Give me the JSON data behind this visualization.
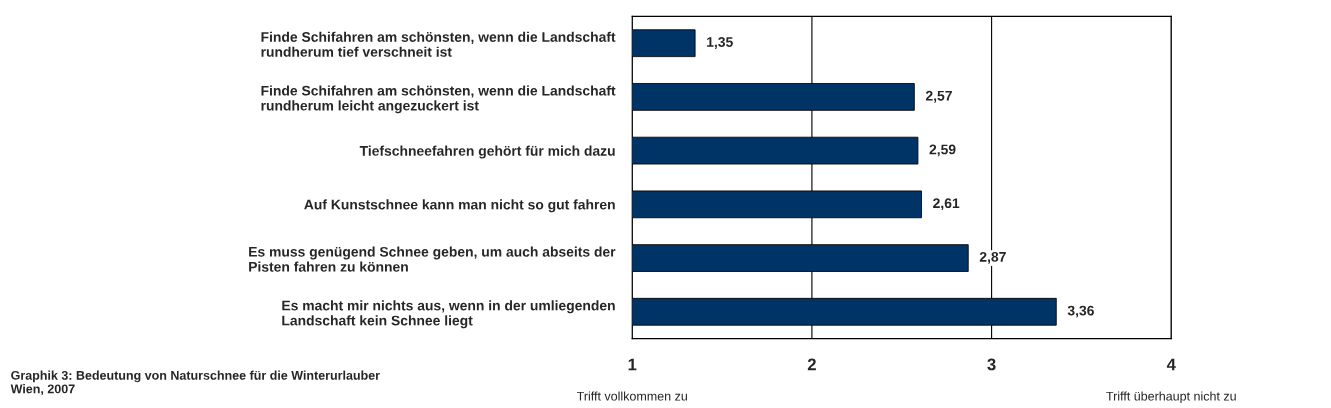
{
  "chart_data": {
    "type": "bar",
    "orientation": "horizontal",
    "categories": [
      "Finde Schifahren am schönsten, wenn die Landschaft\nrundherum tief verschneit ist",
      "Finde Schifahren am schönsten, wenn die Landschaft\nrundherum leicht angezuckert ist",
      "Tiefschneefahren gehört für mich dazu",
      "Auf Kunstschnee kann man nicht so gut fahren",
      "Es muss genügend Schnee geben, um auch abseits der\nPisten fahren zu können",
      "Es macht mir nichts aus, wenn in der umliegenden\nLandschaft kein Schnee liegt"
    ],
    "values": [
      1.35,
      2.57,
      2.59,
      2.61,
      2.87,
      3.36
    ],
    "value_labels": [
      "1,35",
      "2,57",
      "2,59",
      "2,61",
      "2,87",
      "3,36"
    ],
    "color": "#003366",
    "xlim": [
      1,
      4
    ],
    "xticks": [
      1,
      2,
      3,
      4
    ],
    "grid": "x",
    "legend": false,
    "annotations": [
      "Graphik 3: Bedeutung von Naturschnee für die Winterurlauber\nWien, 2007",
      "Trifft vollkommen zu",
      "Trifft überhaupt nicht zu"
    ]
  }
}
